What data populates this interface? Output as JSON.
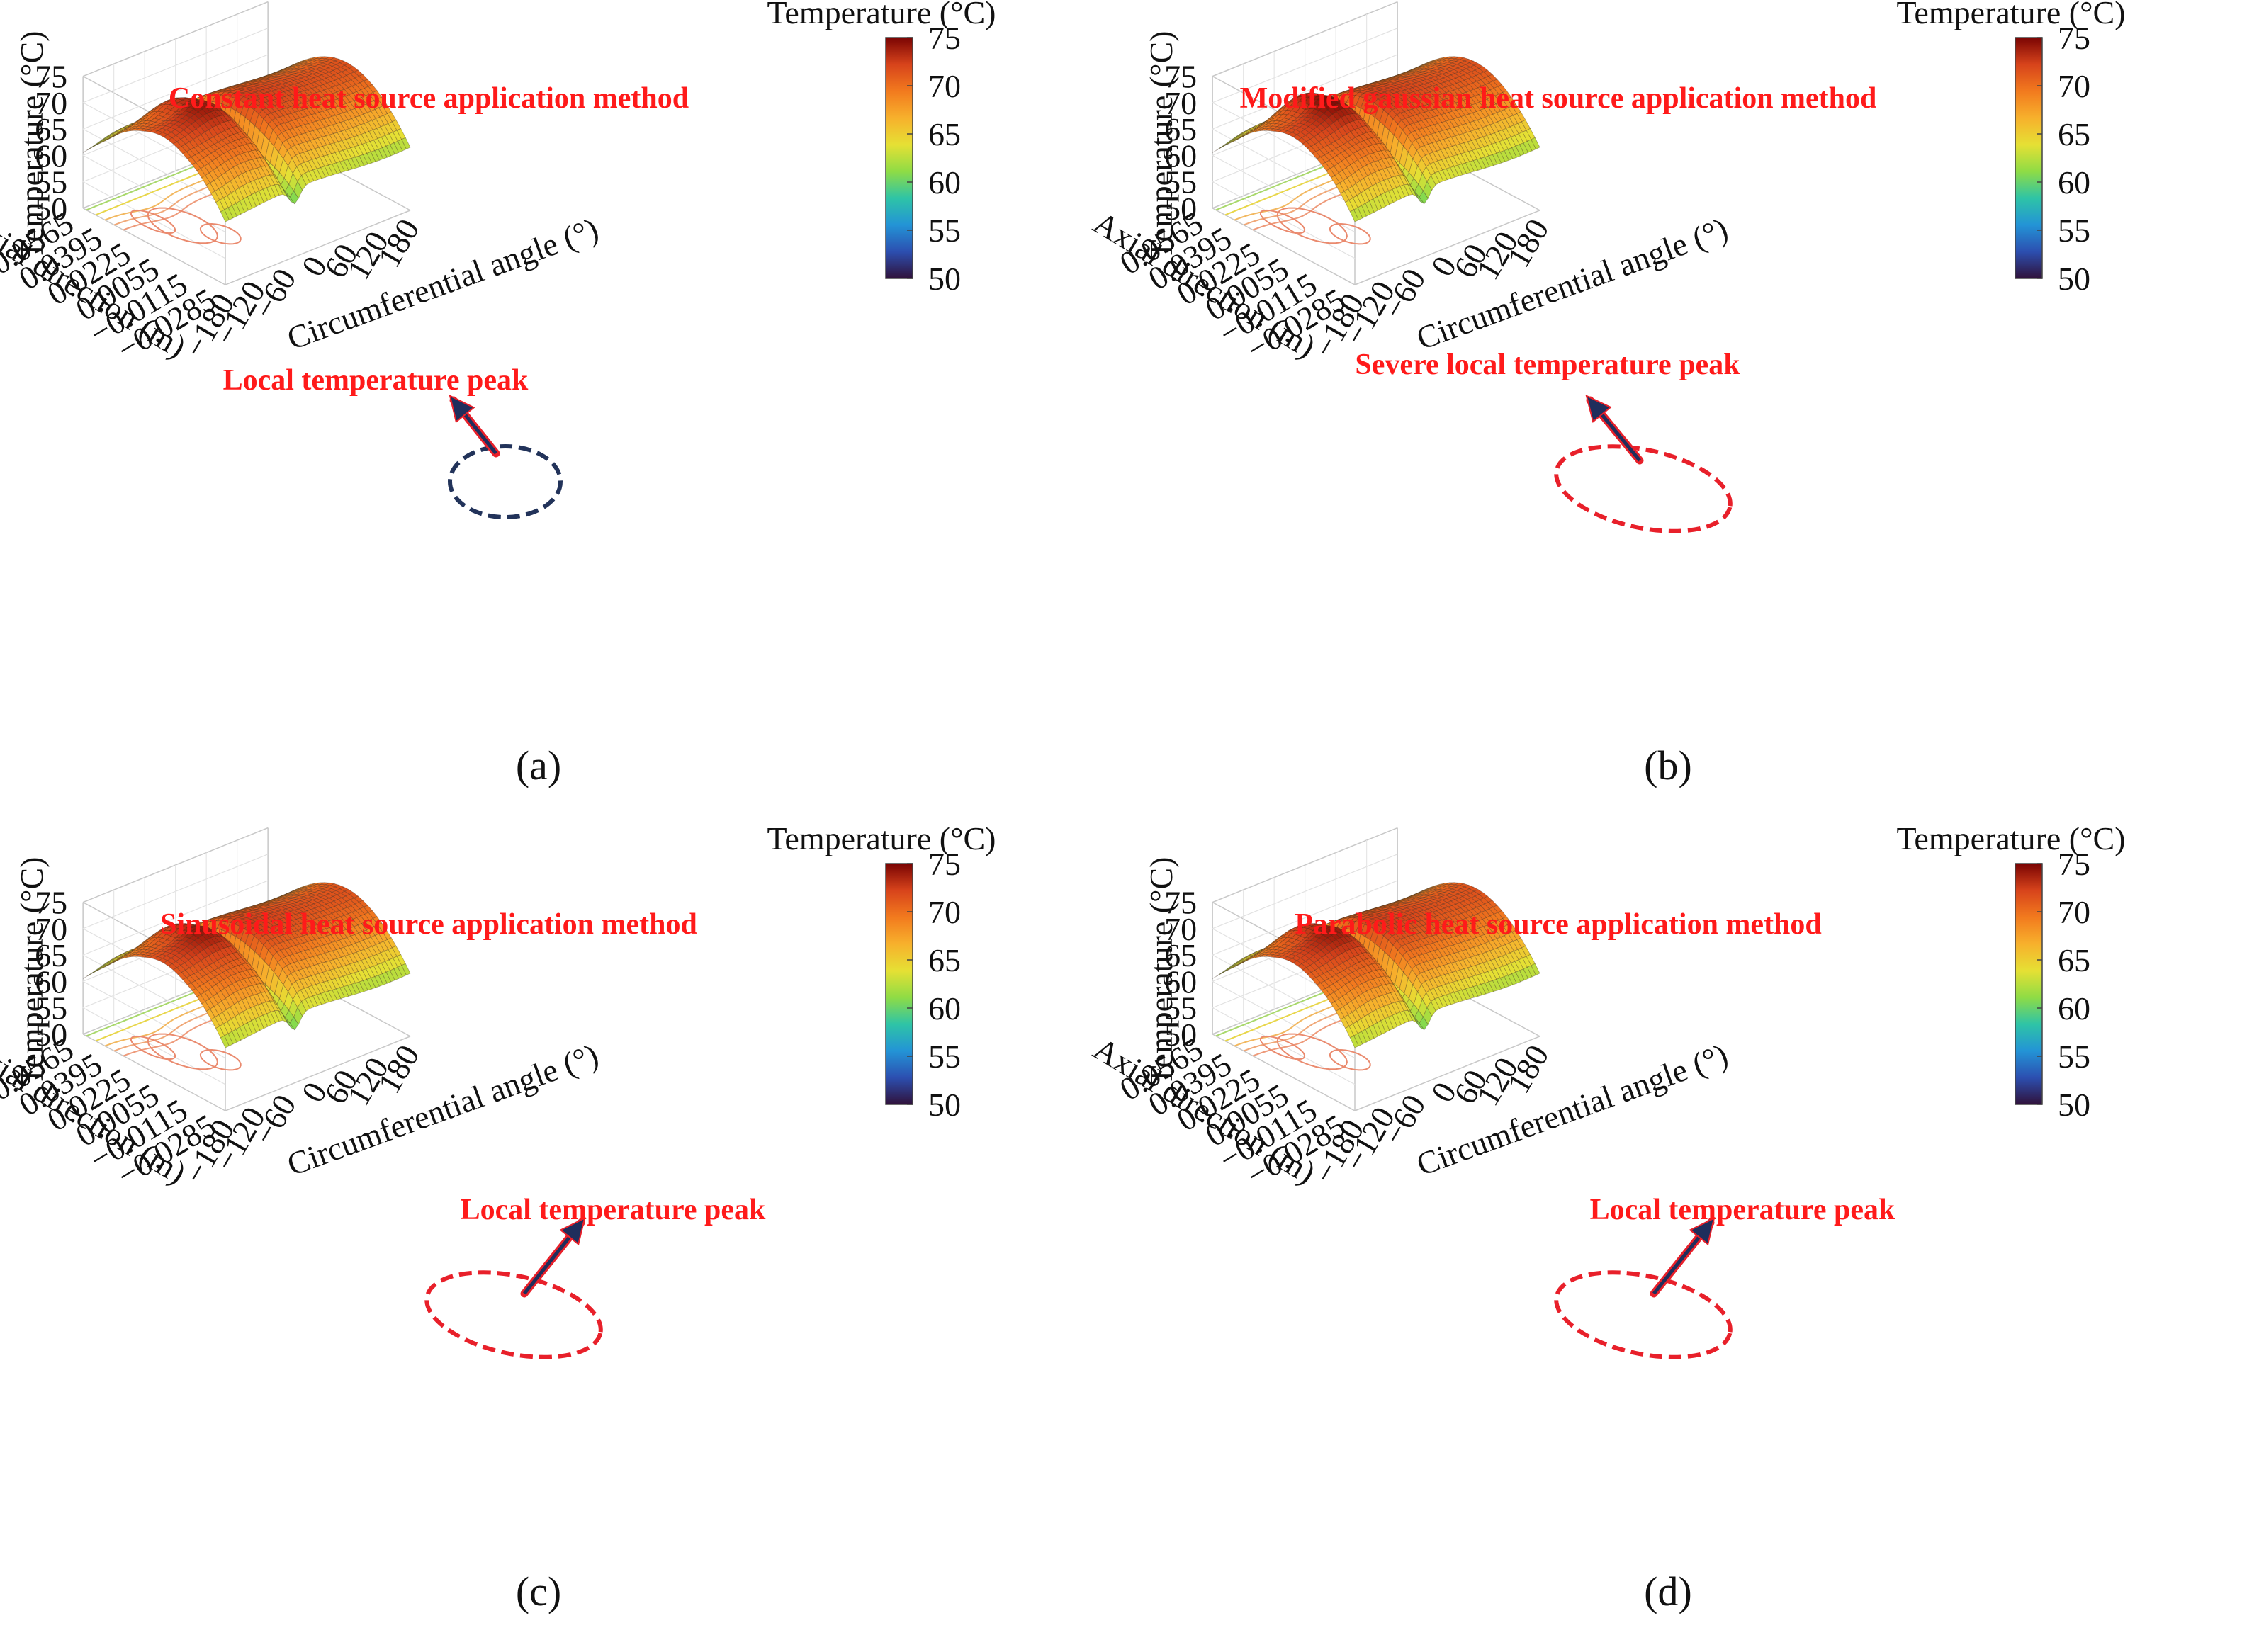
{
  "chart_data": [
    {
      "type": "surface3d",
      "panel_label": "(a)",
      "title": "Constant heat source application method",
      "annotation": "Local temperature peak",
      "marker": "circle",
      "marker_color": "#22335a",
      "zlabel": "Temperature (°C)",
      "xlabel": "Circumferential angle (°)",
      "ylabel": "Axial direction (m)",
      "z_ticks": [
        "50",
        "55",
        "60",
        "65",
        "70",
        "75"
      ],
      "x_ticks": [
        "−180",
        "−120",
        "−60",
        "0",
        "60",
        "120",
        "180"
      ],
      "y_ticks": [
        "−0.0285",
        "−0.0115",
        "0.0055",
        "0.0225",
        "0.0395",
        "0.0565"
      ],
      "zlim": [
        50,
        75
      ],
      "xlim": [
        -180,
        180
      ],
      "ylim": [
        -0.0285,
        0.0565
      ],
      "colorbar": {
        "label": "Temperature (°C)",
        "ticks": [
          "50",
          "55",
          "60",
          "65",
          "70",
          "75"
        ],
        "range": [
          50,
          75
        ]
      },
      "colormap": [
        "#30123b",
        "#2c4fb0",
        "#2394d6",
        "#2ec4a6",
        "#8fdc45",
        "#e6e034",
        "#f7b02c",
        "#f27a1e",
        "#d7431b",
        "#7a0403"
      ]
    },
    {
      "type": "surface3d",
      "panel_label": "(b)",
      "title": "Modified gaussian heat source application method",
      "annotation": "Severe local temperature peak",
      "marker": "ellipse",
      "marker_color": "#e8202a",
      "zlabel": "Temperature (°C)",
      "xlabel": "Circumferential angle (°)",
      "ylabel": "Axial direction (m)",
      "z_ticks": [
        "50",
        "55",
        "60",
        "65",
        "70",
        "75"
      ],
      "x_ticks": [
        "−180",
        "−120",
        "−60",
        "0",
        "60",
        "120",
        "180"
      ],
      "y_ticks": [
        "−0.0285",
        "−0.0115",
        "0.0055",
        "0.0225",
        "0.0395",
        "0.0565"
      ],
      "zlim": [
        50,
        75
      ],
      "xlim": [
        -180,
        180
      ],
      "ylim": [
        -0.0285,
        0.0565
      ],
      "colorbar": {
        "label": "Temperature (°C)",
        "ticks": [
          "50",
          "55",
          "60",
          "65",
          "70",
          "75"
        ],
        "range": [
          50,
          75
        ]
      },
      "colormap": [
        "#30123b",
        "#2c4fb0",
        "#2394d6",
        "#2ec4a6",
        "#8fdc45",
        "#e6e034",
        "#f7b02c",
        "#f27a1e",
        "#d7431b",
        "#7a0403"
      ]
    },
    {
      "type": "surface3d",
      "panel_label": "(c)",
      "title": "Sinusoidal  heat source application method",
      "annotation": "Local temperature peak",
      "marker": "ellipse",
      "marker_color": "#e8202a",
      "zlabel": "Temperature (°C)",
      "xlabel": "Circumferential angle (°)",
      "ylabel": "Axial direction (m)",
      "z_ticks": [
        "50",
        "55",
        "60",
        "65",
        "70",
        "75"
      ],
      "x_ticks": [
        "−180",
        "−120",
        "−60",
        "0",
        "60",
        "120",
        "180"
      ],
      "y_ticks": [
        "−0.0285",
        "−0.0115",
        "0.0055",
        "0.0225",
        "0.0395",
        "0.0565"
      ],
      "zlim": [
        50,
        75
      ],
      "xlim": [
        -180,
        180
      ],
      "ylim": [
        -0.0285,
        0.0565
      ],
      "colorbar": {
        "label": "Temperature (°C)",
        "ticks": [
          "50",
          "55",
          "60",
          "65",
          "70",
          "75"
        ],
        "range": [
          50,
          75
        ]
      },
      "colormap": [
        "#30123b",
        "#2c4fb0",
        "#2394d6",
        "#2ec4a6",
        "#8fdc45",
        "#e6e034",
        "#f7b02c",
        "#f27a1e",
        "#d7431b",
        "#7a0403"
      ]
    },
    {
      "type": "surface3d",
      "panel_label": "(d)",
      "title": "Parabolic heat source application method",
      "annotation": "Local temperature peak",
      "marker": "ellipse",
      "marker_color": "#e8202a",
      "zlabel": "Temperature (°C)",
      "xlabel": "Circumferential angle (°)",
      "ylabel": "Axial direction (m)",
      "z_ticks": [
        "50",
        "55",
        "60",
        "65",
        "70",
        "75"
      ],
      "x_ticks": [
        "−180",
        "−120",
        "−60",
        "0",
        "60",
        "120",
        "180"
      ],
      "y_ticks": [
        "−0.0285",
        "−0.0115",
        "0.0055",
        "0.0225",
        "0.0395",
        "0.0565"
      ],
      "zlim": [
        50,
        75
      ],
      "xlim": [
        -180,
        180
      ],
      "ylim": [
        -0.0285,
        0.0565
      ],
      "colorbar": {
        "label": "Temperature (°C)",
        "ticks": [
          "50",
          "55",
          "60",
          "65",
          "70",
          "75"
        ],
        "range": [
          50,
          75
        ]
      },
      "colormap": [
        "#30123b",
        "#2c4fb0",
        "#2394d6",
        "#2ec4a6",
        "#8fdc45",
        "#e6e034",
        "#f7b02c",
        "#f27a1e",
        "#d7431b",
        "#7a0403"
      ]
    }
  ],
  "colors": {
    "title_red": "#ff1a1a",
    "arrow_fill": "#1f2e5c",
    "arrow_edge": "#e8202a"
  }
}
